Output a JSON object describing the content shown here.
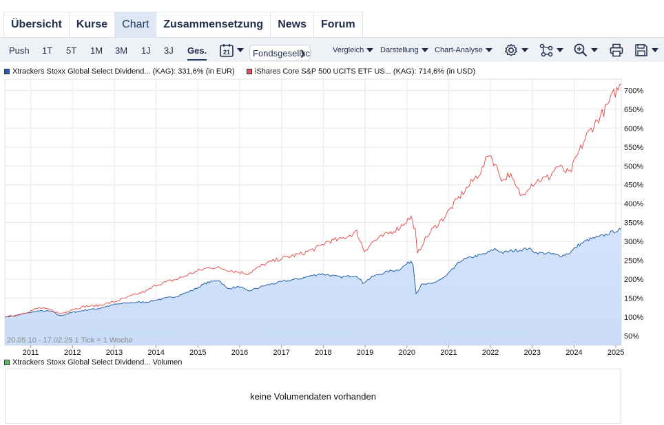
{
  "tabs": [
    {
      "label": "Übersicht",
      "active": false
    },
    {
      "label": "Kurse",
      "active": false
    },
    {
      "label": "Chart",
      "active": true
    },
    {
      "label": "Zusammensetzung",
      "active": false
    },
    {
      "label": "News",
      "active": false
    },
    {
      "label": "Forum",
      "active": false
    }
  ],
  "toolbar": {
    "ranges": [
      "Push",
      "1T",
      "5T",
      "1M",
      "3M",
      "1J",
      "3J",
      "Ges."
    ],
    "active_range": "Ges.",
    "calendar_day": "21",
    "select_value": "Fondsgesellschaft",
    "menus": [
      "Vergleich",
      "Darstellung",
      "Chart-Analyse"
    ],
    "icons": [
      "gear-icon",
      "network-icon",
      "zoom-icon",
      "print-icon",
      "save-icon"
    ]
  },
  "legend": {
    "series1": "Xtrackers Stoxx Global Select Dividend... (KAG): 331,6% (in EUR)",
    "series2": "iShares Core S&P 500 UCITS ETF US... (KAG): 714,6% (in USD)",
    "volume": "Xtrackers Stoxx Global Select Dividend... Volumen"
  },
  "volume_message": "keine Volumendaten vorhanden",
  "chart_data": {
    "type": "line",
    "info": "20.05.10 - 17.02.25   1 Tick = 1 Woche",
    "x_ticks": [
      "2011",
      "2012",
      "2013",
      "2014",
      "2015",
      "2016",
      "2017",
      "2018",
      "2019",
      "2020",
      "2021",
      "2022",
      "2023",
      "2024",
      "2025"
    ],
    "y_ticks": [
      "50%",
      "100%",
      "150%",
      "200%",
      "250%",
      "300%",
      "350%",
      "400%",
      "450%",
      "500%",
      "550%",
      "600%",
      "650%",
      "700%"
    ],
    "xlim": [
      2010.38,
      2025.13
    ],
    "ylim": [
      25,
      730
    ],
    "grid": true,
    "series": [
      {
        "name": "Xtrackers Stoxx Global Select Dividend...",
        "color": "#1f5fa8",
        "fill": "#c9dcf7",
        "points": [
          [
            2010.38,
            100
          ],
          [
            2010.6,
            103
          ],
          [
            2010.9,
            110
          ],
          [
            2011.2,
            116
          ],
          [
            2011.5,
            115
          ],
          [
            2011.7,
            103
          ],
          [
            2012.0,
            112
          ],
          [
            2012.3,
            118
          ],
          [
            2012.6,
            122
          ],
          [
            2013.0,
            133
          ],
          [
            2013.4,
            138
          ],
          [
            2013.8,
            140
          ],
          [
            2014.0,
            145
          ],
          [
            2014.5,
            155
          ],
          [
            2014.9,
            172
          ],
          [
            2015.2,
            190
          ],
          [
            2015.5,
            198
          ],
          [
            2015.7,
            175
          ],
          [
            2016.0,
            180
          ],
          [
            2016.2,
            168
          ],
          [
            2016.6,
            183
          ],
          [
            2017.0,
            193
          ],
          [
            2017.5,
            203
          ],
          [
            2017.9,
            214
          ],
          [
            2018.1,
            212
          ],
          [
            2018.4,
            205
          ],
          [
            2018.8,
            210
          ],
          [
            2018.95,
            190
          ],
          [
            2019.2,
            208
          ],
          [
            2019.6,
            222
          ],
          [
            2019.8,
            225
          ],
          [
            2020.1,
            248
          ],
          [
            2020.15,
            240
          ],
          [
            2020.22,
            162
          ],
          [
            2020.35,
            185
          ],
          [
            2020.6,
            188
          ],
          [
            2020.9,
            205
          ],
          [
            2021.0,
            215
          ],
          [
            2021.3,
            250
          ],
          [
            2021.6,
            260
          ],
          [
            2021.9,
            268
          ],
          [
            2022.1,
            280
          ],
          [
            2022.3,
            270
          ],
          [
            2022.5,
            275
          ],
          [
            2022.75,
            278
          ],
          [
            2022.9,
            282
          ],
          [
            2023.1,
            270
          ],
          [
            2023.4,
            268
          ],
          [
            2023.7,
            262
          ],
          [
            2023.9,
            270
          ],
          [
            2024.1,
            290
          ],
          [
            2024.35,
            305
          ],
          [
            2024.6,
            312
          ],
          [
            2024.8,
            320
          ],
          [
            2025.0,
            328
          ],
          [
            2025.13,
            332
          ]
        ]
      },
      {
        "name": "iShares Core S&P 500 UCITS ETF US...",
        "color": "#e85050",
        "fill": "none",
        "points": [
          [
            2010.38,
            100
          ],
          [
            2010.6,
            103
          ],
          [
            2010.9,
            112
          ],
          [
            2011.2,
            124
          ],
          [
            2011.5,
            118
          ],
          [
            2011.7,
            108
          ],
          [
            2012.0,
            120
          ],
          [
            2012.3,
            128
          ],
          [
            2012.6,
            130
          ],
          [
            2013.0,
            140
          ],
          [
            2013.4,
            155
          ],
          [
            2013.8,
            170
          ],
          [
            2014.0,
            185
          ],
          [
            2014.5,
            200
          ],
          [
            2014.9,
            218
          ],
          [
            2015.3,
            232
          ],
          [
            2015.6,
            228
          ],
          [
            2015.9,
            220
          ],
          [
            2016.2,
            215
          ],
          [
            2016.6,
            240
          ],
          [
            2017.0,
            255
          ],
          [
            2017.5,
            268
          ],
          [
            2017.9,
            285
          ],
          [
            2018.1,
            300
          ],
          [
            2018.4,
            305
          ],
          [
            2018.8,
            325
          ],
          [
            2018.98,
            275
          ],
          [
            2019.2,
            300
          ],
          [
            2019.5,
            318
          ],
          [
            2019.8,
            335
          ],
          [
            2020.1,
            365
          ],
          [
            2020.2,
            330
          ],
          [
            2020.25,
            265
          ],
          [
            2020.4,
            300
          ],
          [
            2020.6,
            330
          ],
          [
            2020.9,
            365
          ],
          [
            2021.2,
            410
          ],
          [
            2021.5,
            450
          ],
          [
            2021.8,
            490
          ],
          [
            2021.97,
            535
          ],
          [
            2022.15,
            495
          ],
          [
            2022.3,
            460
          ],
          [
            2022.45,
            480
          ],
          [
            2022.6,
            445
          ],
          [
            2022.75,
            420
          ],
          [
            2022.9,
            445
          ],
          [
            2023.1,
            460
          ],
          [
            2023.4,
            470
          ],
          [
            2023.6,
            500
          ],
          [
            2023.8,
            485
          ],
          [
            2023.9,
            480
          ],
          [
            2024.05,
            520
          ],
          [
            2024.3,
            580
          ],
          [
            2024.55,
            620
          ],
          [
            2024.75,
            650
          ],
          [
            2024.95,
            690
          ],
          [
            2025.13,
            715
          ]
        ]
      }
    ]
  }
}
